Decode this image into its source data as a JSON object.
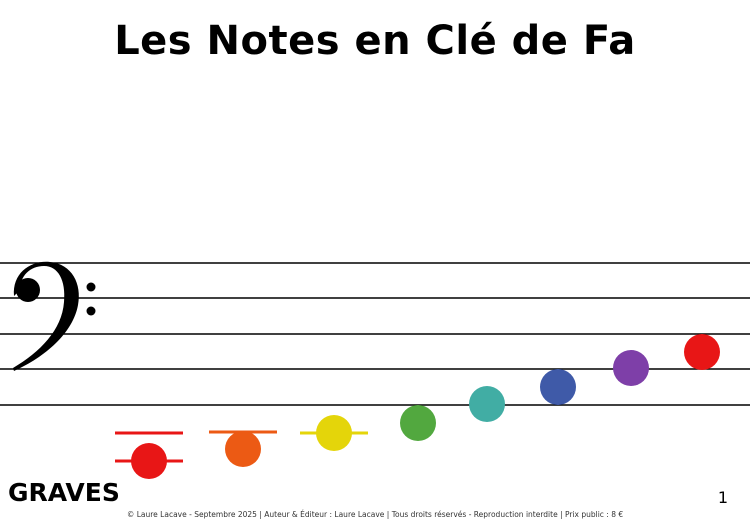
{
  "title": "Les Notes en Clé de Fa",
  "level_label": "GRAVES",
  "page_number": "1",
  "footer": "© Laure Lacave - Septembre 2025 | Auteur & Éditeur : Laure Lacave | Tous droits réservés - Reproduction interdite | Prix public : 8 €",
  "clef": "bass-clef",
  "notes": [
    {
      "color": "#e81616",
      "ledger_lines": 2
    },
    {
      "color": "#ec5a14",
      "ledger_lines": 1
    },
    {
      "color": "#e4d50a",
      "ledger_lines": 1
    },
    {
      "color": "#52a83f"
    },
    {
      "color": "#41ada4"
    },
    {
      "color": "#3f5aa8"
    },
    {
      "color": "#7e3fa8"
    },
    {
      "color": "#e81616"
    }
  ]
}
